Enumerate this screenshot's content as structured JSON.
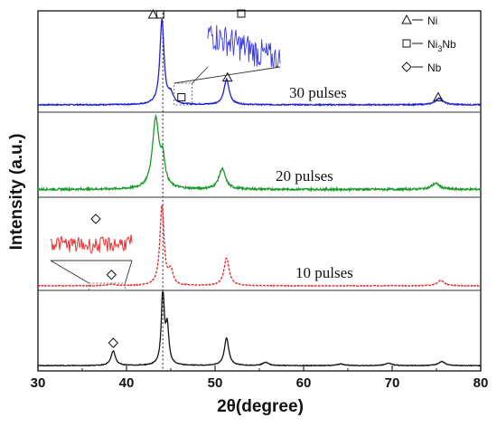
{
  "chart_data": {
    "type": "line",
    "xlabel": "2θ(degree)",
    "ylabel": "Intensity (a.u.)",
    "xlim": [
      30,
      80
    ],
    "xticks": [
      "30",
      "40",
      "50",
      "60",
      "70",
      "80"
    ],
    "grid": false,
    "stacked_panels": true,
    "reference_line_x": 44.1,
    "legend": {
      "placement": "top-right",
      "entries": [
        {
          "marker": "triangle",
          "label": "Ni"
        },
        {
          "marker": "square",
          "label": "Ni",
          "sub": "3",
          "suffix": "Nb"
        },
        {
          "marker": "diamond",
          "label": "Nb"
        }
      ]
    },
    "series": [
      {
        "name": "30 pulses",
        "color": "#1f1fd6",
        "style": "solid",
        "baseline": 0.04,
        "peaks": [
          [
            44.0,
            0.9,
            0.28
          ],
          [
            45.0,
            0.1,
            0.35
          ],
          [
            51.3,
            0.27,
            0.35
          ],
          [
            75.3,
            0.07,
            0.5
          ]
        ],
        "noise": 0.006,
        "markers": [
          {
            "x": 43.0,
            "y": 1.0,
            "shape": "triangle"
          },
          {
            "x": 43.8,
            "y": 1.0,
            "shape": "square"
          },
          {
            "x": 46.2,
            "y": 0.12,
            "shape": "square"
          },
          {
            "x": 51.4,
            "y": 0.33,
            "shape": "triangle"
          },
          {
            "x": 75.2,
            "y": 0.12,
            "shape": "triangle"
          }
        ],
        "separator": ",",
        "inset": {
          "color": "#3a3ae8",
          "from_x": 46.8,
          "zoom_range": [
            44.9,
            46.7
          ]
        }
      },
      {
        "name": "20 pulses",
        "color": "#1a9a2a",
        "style": "solid",
        "baseline": 0.06,
        "peaks": [
          [
            43.3,
            0.82,
            0.45
          ],
          [
            44.1,
            0.3,
            0.3
          ],
          [
            50.8,
            0.24,
            0.45
          ],
          [
            74.9,
            0.07,
            0.55
          ]
        ],
        "noise": 0.012,
        "markers": []
      },
      {
        "name": "10 pulses",
        "color": "#ee1f1f",
        "style": "dashed",
        "baseline": 0.02,
        "peaks": [
          [
            44.0,
            0.86,
            0.28
          ],
          [
            45.0,
            0.15,
            0.3
          ],
          [
            51.3,
            0.3,
            0.35
          ],
          [
            75.5,
            0.06,
            0.45
          ],
          [
            38.3,
            0.015,
            0.6
          ]
        ],
        "noise": 0.004,
        "markers": [
          {
            "x": 38.3,
            "y": 0.14,
            "shape": "diamond"
          }
        ],
        "inset": {
          "color": "#ee1f1f",
          "from_x": 37.8,
          "zoom_range": [
            36.8,
            39.8
          ]
        }
      },
      {
        "name": "",
        "color": "#111111",
        "style": "solid",
        "baseline": 0.02,
        "peaks": [
          [
            38.5,
            0.18,
            0.3
          ],
          [
            44.1,
            0.9,
            0.2
          ],
          [
            44.6,
            0.45,
            0.22
          ],
          [
            51.3,
            0.34,
            0.3
          ],
          [
            55.7,
            0.04,
            0.4
          ],
          [
            64.2,
            0.02,
            0.5
          ],
          [
            69.6,
            0.03,
            0.45
          ],
          [
            75.6,
            0.05,
            0.45
          ]
        ],
        "noise": 0.004,
        "markers": [
          {
            "x": 38.5,
            "y": 0.3,
            "shape": "diamond"
          }
        ]
      }
    ]
  }
}
